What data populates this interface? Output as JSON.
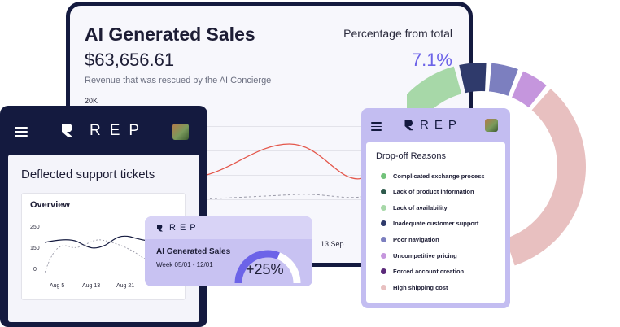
{
  "sales_card": {
    "title": "AI Generated Sales",
    "amount": "$63,656.61",
    "subtitle": "Revenue that was rescued by the AI Concierge",
    "pct_label": "Percentage from total",
    "pct_value": "7.1%",
    "y_tick": "20K",
    "x_tick": "13 Sep"
  },
  "donut": {
    "segments": [
      {
        "color": "#e8c0c0",
        "fraction": 0.41
      },
      {
        "color": "#72c27a",
        "fraction": 0.24
      },
      {
        "color": "#a7d8a8",
        "fraction": 0.17
      },
      {
        "color": "#2f3a6b",
        "fraction": 0.06
      },
      {
        "color": "#7c7fbf",
        "fraction": 0.06
      },
      {
        "color": "#c596dd",
        "fraction": 0.06
      }
    ]
  },
  "phone": {
    "brand": "REP",
    "card_title": "Deflected support tickets",
    "overview_title": "Overview",
    "y_ticks": [
      "250",
      "150",
      "0"
    ],
    "x_ticks": [
      "Aug 5",
      "Aug 13",
      "Aug 21"
    ]
  },
  "mini": {
    "brand": "REP",
    "title": "AI Generated Sales",
    "week": "Week 05/01 - 12/01",
    "pct": "+25%",
    "progress": 0.62
  },
  "drop_off": {
    "brand": "REP",
    "title": "Drop-off Reasons",
    "items": [
      {
        "label": "Complicated exchange process",
        "color": "#72c27a"
      },
      {
        "label": "Lack of product information",
        "color": "#2e5a4c"
      },
      {
        "label": "Lack of availability",
        "color": "#a7d8a8"
      },
      {
        "label": "Inadequate customer support",
        "color": "#2f3a6b"
      },
      {
        "label": "Poor navigation",
        "color": "#7c7fbf"
      },
      {
        "label": "Uncompetitive pricing",
        "color": "#c596dd"
      },
      {
        "label": "Forced account creation",
        "color": "#5b2a7a"
      },
      {
        "label": "High shipping cost",
        "color": "#e8c0c0"
      }
    ]
  }
}
